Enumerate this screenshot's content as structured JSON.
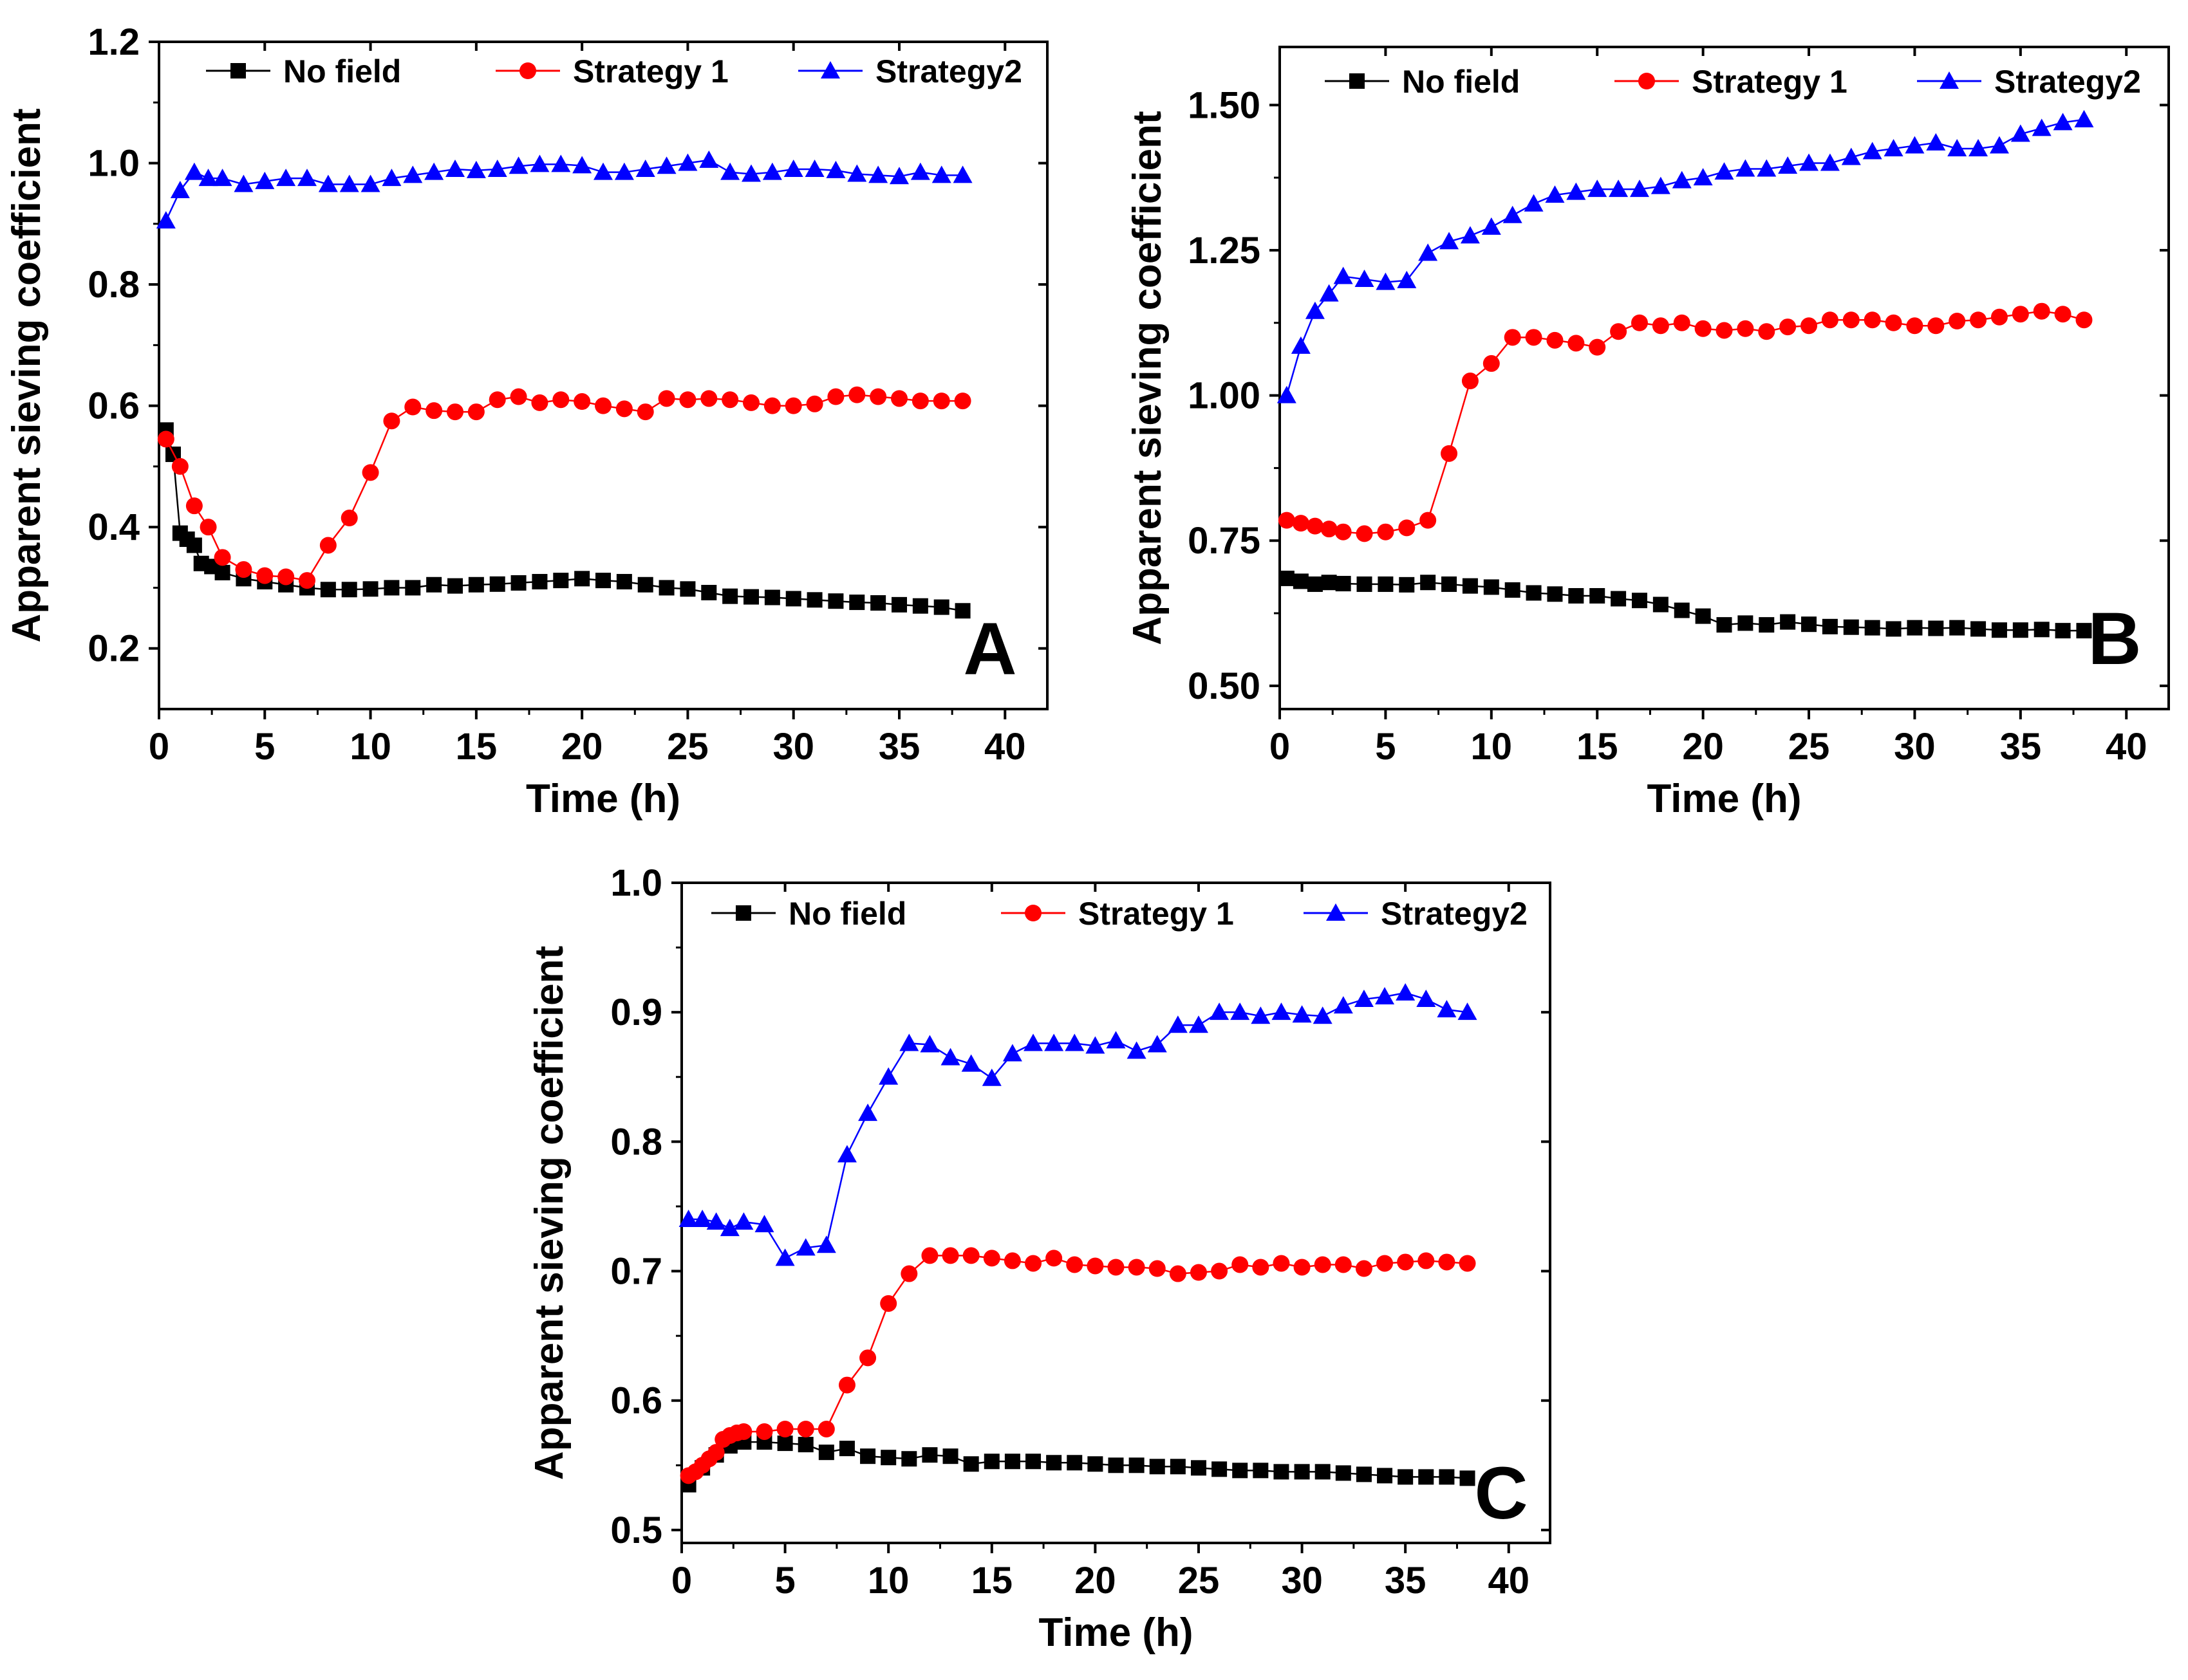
{
  "chart_data": [
    {
      "panel": "A",
      "type": "line",
      "xlabel": "Time (h)",
      "ylabel": "Apparent sieving coefficient",
      "xlim": [
        0,
        42
      ],
      "ylim": [
        0.1,
        1.2
      ],
      "xticks": [
        0,
        5,
        10,
        15,
        20,
        25,
        30,
        35,
        40
      ],
      "xtick_labels": [
        "0",
        "5",
        "10",
        "15",
        "20",
        "25",
        "30",
        "35",
        "40"
      ],
      "yticks": [
        0.2,
        0.4,
        0.6,
        0.8,
        1.0,
        1.2
      ],
      "ytick_labels": [
        "0.2",
        "0.4",
        "0.6",
        "0.8",
        "1.0",
        "1.2"
      ],
      "legend_position": "top",
      "series": [
        {
          "name": "No field",
          "color": "#000000",
          "marker": "square",
          "x": [
            0.33,
            0.67,
            1,
            1.33,
            1.67,
            2,
            2.5,
            3,
            4,
            5,
            6,
            7,
            8,
            9,
            10,
            11,
            12,
            13,
            14,
            15,
            16,
            17,
            18,
            19,
            20,
            21,
            22,
            23,
            24,
            25,
            26,
            27,
            28,
            29,
            30,
            31,
            32,
            33,
            34,
            35,
            36,
            37,
            38
          ],
          "values": [
            0.56,
            0.52,
            0.39,
            0.38,
            0.37,
            0.34,
            0.335,
            0.325,
            0.315,
            0.31,
            0.305,
            0.3,
            0.297,
            0.297,
            0.298,
            0.3,
            0.3,
            0.305,
            0.303,
            0.305,
            0.306,
            0.308,
            0.31,
            0.312,
            0.315,
            0.312,
            0.31,
            0.305,
            0.3,
            0.298,
            0.292,
            0.286,
            0.285,
            0.284,
            0.282,
            0.28,
            0.278,
            0.276,
            0.275,
            0.272,
            0.27,
            0.268,
            0.262
          ]
        },
        {
          "name": "Strategy 1",
          "color": "#ff0000",
          "marker": "circle",
          "x": [
            0.33,
            1,
            1.67,
            2.33,
            3,
            4,
            5,
            6,
            7,
            8,
            9,
            10,
            11,
            12,
            13,
            14,
            15,
            16,
            17,
            18,
            19,
            20,
            21,
            22,
            23,
            24,
            25,
            26,
            27,
            28,
            29,
            30,
            31,
            32,
            33,
            34,
            35,
            36,
            37,
            38
          ],
          "values": [
            0.545,
            0.5,
            0.435,
            0.4,
            0.35,
            0.33,
            0.32,
            0.318,
            0.312,
            0.37,
            0.415,
            0.49,
            0.575,
            0.598,
            0.592,
            0.59,
            0.59,
            0.61,
            0.615,
            0.605,
            0.61,
            0.607,
            0.6,
            0.595,
            0.59,
            0.612,
            0.61,
            0.612,
            0.61,
            0.605,
            0.6,
            0.6,
            0.603,
            0.615,
            0.618,
            0.615,
            0.612,
            0.608,
            0.608,
            0.608
          ]
        },
        {
          "name": "Strategy2",
          "color": "#0000ff",
          "marker": "triangle",
          "x": [
            0.33,
            1,
            1.67,
            2.33,
            3,
            4,
            5,
            6,
            7,
            8,
            9,
            10,
            11,
            12,
            13,
            14,
            15,
            16,
            17,
            18,
            19,
            20,
            21,
            22,
            23,
            24,
            25,
            26,
            27,
            28,
            29,
            30,
            31,
            32,
            33,
            34,
            35,
            36,
            37,
            38
          ],
          "values": [
            0.905,
            0.955,
            0.985,
            0.975,
            0.975,
            0.965,
            0.97,
            0.975,
            0.975,
            0.965,
            0.965,
            0.965,
            0.975,
            0.98,
            0.985,
            0.99,
            0.988,
            0.99,
            0.995,
            0.998,
            0.998,
            0.996,
            0.985,
            0.985,
            0.99,
            0.995,
            1.0,
            1.005,
            0.985,
            0.982,
            0.985,
            0.99,
            0.99,
            0.988,
            0.982,
            0.98,
            0.978,
            0.985,
            0.98,
            0.98
          ]
        }
      ]
    },
    {
      "panel": "B",
      "type": "line",
      "xlabel": "Time (h)",
      "ylabel": "Apparent sieving coefficient",
      "xlim": [
        0,
        42
      ],
      "ylim": [
        0.46,
        1.6
      ],
      "xticks": [
        0,
        5,
        10,
        15,
        20,
        25,
        30,
        35,
        40
      ],
      "xtick_labels": [
        "0",
        "5",
        "10",
        "15",
        "20",
        "25",
        "30",
        "35",
        "40"
      ],
      "yticks": [
        0.5,
        0.75,
        1.0,
        1.25,
        1.5
      ],
      "ytick_labels": [
        "0.50",
        "0.75",
        "1.00",
        "1.25",
        "1.50"
      ],
      "legend_position": "top",
      "series": [
        {
          "name": "No field",
          "color": "#000000",
          "marker": "square",
          "x": [
            0.33,
            1,
            1.67,
            2.33,
            3,
            4,
            5,
            6,
            7,
            8,
            9,
            10,
            11,
            12,
            13,
            14,
            15,
            16,
            17,
            18,
            19,
            20,
            21,
            22,
            23,
            24,
            25,
            26,
            27,
            28,
            29,
            30,
            31,
            32,
            33,
            34,
            35,
            36,
            37,
            38
          ],
          "values": [
            0.685,
            0.68,
            0.675,
            0.678,
            0.676,
            0.675,
            0.675,
            0.674,
            0.678,
            0.675,
            0.672,
            0.67,
            0.665,
            0.66,
            0.658,
            0.655,
            0.655,
            0.65,
            0.647,
            0.64,
            0.63,
            0.62,
            0.605,
            0.608,
            0.605,
            0.61,
            0.606,
            0.602,
            0.601,
            0.6,
            0.598,
            0.6,
            0.599,
            0.6,
            0.598,
            0.596,
            0.596,
            0.597,
            0.595,
            0.595
          ]
        },
        {
          "name": "Strategy 1",
          "color": "#ff0000",
          "marker": "circle",
          "x": [
            0.33,
            1,
            1.67,
            2.33,
            3,
            4,
            5,
            6,
            7,
            8,
            9,
            10,
            11,
            12,
            13,
            14,
            15,
            16,
            17,
            18,
            19,
            20,
            21,
            22,
            23,
            24,
            25,
            26,
            27,
            28,
            29,
            30,
            31,
            32,
            33,
            34,
            35,
            36,
            37,
            38
          ],
          "values": [
            0.785,
            0.78,
            0.775,
            0.77,
            0.765,
            0.762,
            0.765,
            0.772,
            0.785,
            0.9,
            1.025,
            1.055,
            1.1,
            1.1,
            1.095,
            1.09,
            1.083,
            1.11,
            1.125,
            1.12,
            1.125,
            1.115,
            1.112,
            1.115,
            1.11,
            1.118,
            1.12,
            1.13,
            1.13,
            1.13,
            1.125,
            1.12,
            1.12,
            1.128,
            1.13,
            1.135,
            1.14,
            1.145,
            1.14,
            1.13
          ]
        },
        {
          "name": "Strategy2",
          "color": "#0000ff",
          "marker": "triangle",
          "x": [
            0.33,
            1,
            1.67,
            2.33,
            3,
            4,
            5,
            6,
            7,
            8,
            9,
            10,
            11,
            12,
            13,
            14,
            15,
            16,
            17,
            18,
            19,
            20,
            21,
            22,
            23,
            24,
            25,
            26,
            27,
            28,
            29,
            30,
            31,
            32,
            33,
            34,
            35,
            36,
            37,
            38
          ],
          "values": [
            1.0,
            1.085,
            1.145,
            1.175,
            1.205,
            1.2,
            1.195,
            1.198,
            1.245,
            1.265,
            1.275,
            1.29,
            1.31,
            1.33,
            1.345,
            1.35,
            1.355,
            1.355,
            1.355,
            1.36,
            1.37,
            1.375,
            1.385,
            1.39,
            1.39,
            1.395,
            1.4,
            1.4,
            1.41,
            1.42,
            1.425,
            1.43,
            1.435,
            1.425,
            1.425,
            1.43,
            1.45,
            1.46,
            1.47,
            1.475
          ]
        }
      ]
    },
    {
      "panel": "C",
      "type": "line",
      "xlabel": "Time (h)",
      "ylabel": "Apparent sieving coefficient",
      "xlim": [
        0,
        42
      ],
      "ylim": [
        0.49,
        1.0
      ],
      "xticks": [
        0,
        5,
        10,
        15,
        20,
        25,
        30,
        35,
        40
      ],
      "xtick_labels": [
        "0",
        "5",
        "10",
        "15",
        "20",
        "25",
        "30",
        "35",
        "40"
      ],
      "yticks": [
        0.5,
        0.6,
        0.7,
        0.8,
        0.9,
        1.0
      ],
      "ytick_labels": [
        "0.5",
        "0.6",
        "0.7",
        "0.8",
        "0.9",
        "1.0"
      ],
      "legend_position": "top",
      "series": [
        {
          "name": "No field",
          "color": "#000000",
          "marker": "square",
          "x": [
            0.33,
            1,
            1.67,
            2.33,
            3,
            4,
            5,
            6,
            7,
            8,
            9,
            10,
            11,
            12,
            13,
            14,
            15,
            16,
            17,
            18,
            19,
            20,
            21,
            22,
            23,
            24,
            25,
            26,
            27,
            28,
            29,
            30,
            31,
            32,
            33,
            34,
            35,
            36,
            37,
            38
          ],
          "values": [
            0.535,
            0.548,
            0.558,
            0.565,
            0.568,
            0.568,
            0.567,
            0.566,
            0.56,
            0.563,
            0.557,
            0.556,
            0.555,
            0.558,
            0.557,
            0.551,
            0.553,
            0.553,
            0.553,
            0.552,
            0.552,
            0.551,
            0.55,
            0.55,
            0.549,
            0.549,
            0.548,
            0.547,
            0.546,
            0.546,
            0.545,
            0.545,
            0.545,
            0.544,
            0.543,
            0.542,
            0.541,
            0.541,
            0.541,
            0.54
          ]
        },
        {
          "name": "Strategy 1",
          "color": "#ff0000",
          "marker": "circle",
          "x": [
            0.33,
            0.67,
            1,
            1.33,
            1.67,
            2,
            2.33,
            2.67,
            3,
            4,
            5,
            6,
            7,
            8,
            9,
            10,
            11,
            12,
            13,
            14,
            15,
            16,
            17,
            18,
            19,
            20,
            21,
            22,
            23,
            24,
            25,
            26,
            27,
            28,
            29,
            30,
            31,
            32,
            33,
            34,
            35,
            36,
            37,
            38
          ],
          "values": [
            0.542,
            0.545,
            0.55,
            0.555,
            0.56,
            0.57,
            0.573,
            0.575,
            0.576,
            0.576,
            0.578,
            0.578,
            0.578,
            0.612,
            0.633,
            0.675,
            0.698,
            0.712,
            0.712,
            0.712,
            0.71,
            0.708,
            0.706,
            0.71,
            0.705,
            0.704,
            0.703,
            0.703,
            0.702,
            0.698,
            0.699,
            0.7,
            0.705,
            0.703,
            0.706,
            0.703,
            0.705,
            0.705,
            0.702,
            0.706,
            0.707,
            0.708,
            0.707,
            0.706
          ]
        },
        {
          "name": "Strategy2",
          "color": "#0000ff",
          "marker": "triangle",
          "x": [
            0.33,
            1,
            1.67,
            2.33,
            3,
            4,
            5,
            6,
            7,
            8,
            9,
            10,
            11,
            12,
            13,
            14,
            15,
            16,
            17,
            18,
            19,
            20,
            21,
            22,
            23,
            24,
            25,
            26,
            27,
            28,
            29,
            30,
            31,
            32,
            33,
            34,
            35,
            36,
            37,
            38
          ],
          "values": [
            0.74,
            0.74,
            0.738,
            0.733,
            0.738,
            0.736,
            0.71,
            0.718,
            0.72,
            0.79,
            0.822,
            0.85,
            0.876,
            0.875,
            0.865,
            0.86,
            0.849,
            0.868,
            0.876,
            0.876,
            0.876,
            0.874,
            0.878,
            0.87,
            0.875,
            0.89,
            0.89,
            0.9,
            0.9,
            0.897,
            0.9,
            0.898,
            0.897,
            0.905,
            0.91,
            0.912,
            0.915,
            0.91,
            0.902,
            0.9
          ]
        }
      ]
    }
  ]
}
